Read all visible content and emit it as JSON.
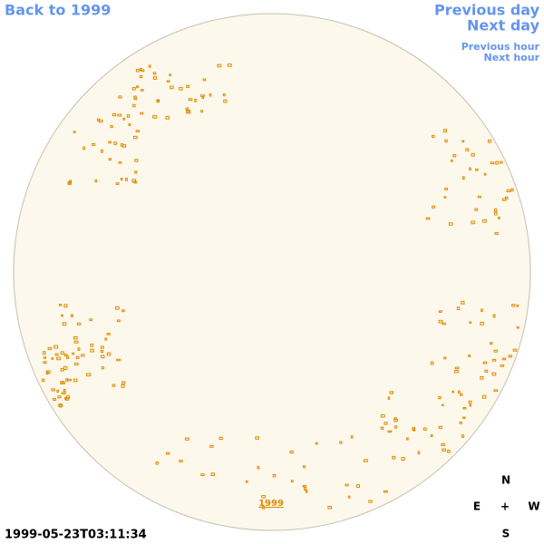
{
  "nav": {
    "back_year": "Back to 1999",
    "previous_day": "Previous day",
    "next_day": "Next day",
    "previous_hour": "Previous hour",
    "next_hour": "Next hour"
  },
  "disk_label": "1999",
  "timestamp": "1999-05-23T03:11:34",
  "compass": {
    "north": "N",
    "east": "E",
    "center": "+",
    "west": "W",
    "south": "S"
  }
}
